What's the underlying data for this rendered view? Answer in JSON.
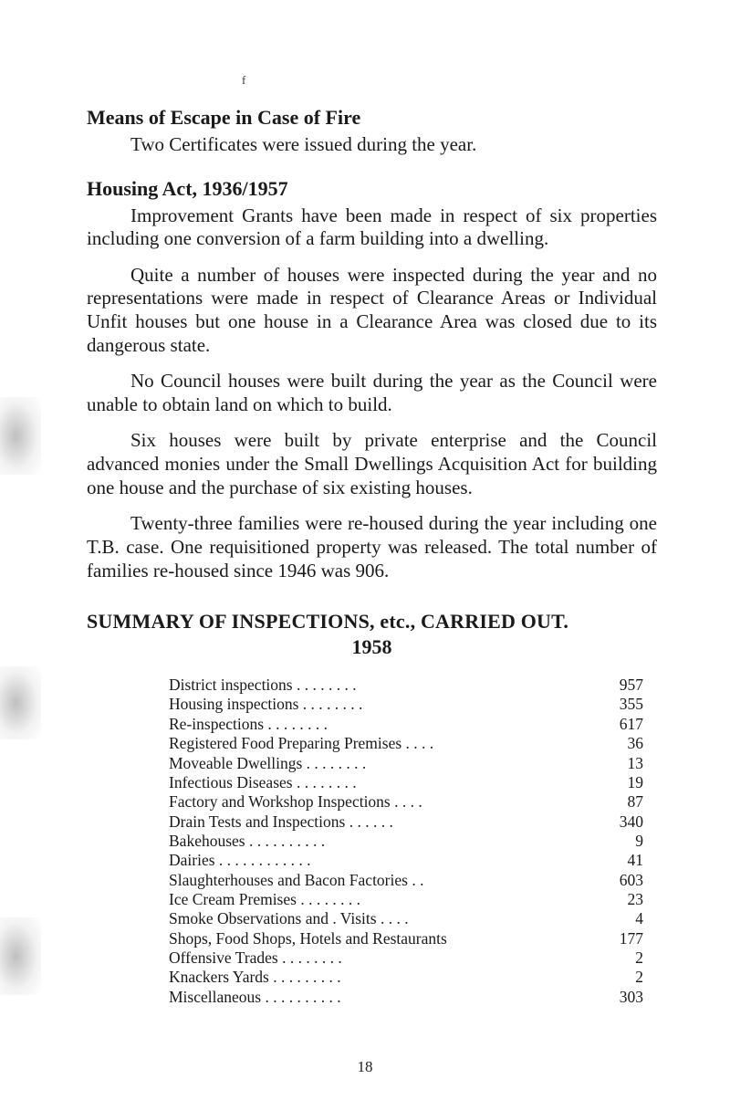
{
  "top_mark": "f",
  "sections": {
    "escape": {
      "heading": "Means of Escape in Case of Fire",
      "p1": "Two Certificates were issued during the year."
    },
    "housing": {
      "heading": "Housing Act, 1936/1957",
      "p1": "Improvement Grants have been made in respect of six properties including one conversion of a farm building into a dwelling.",
      "p2": "Quite a number of houses were inspected during the year and no representations were made in respect of Clearance Areas or Individual Unfit houses but one house in a Clearance Area was closed due to its dangerous state.",
      "p3": "No Council houses were built during the year as the Council were unable to obtain land on which to build.",
      "p4": "Six houses were built by private enterprise and the Council advanced monies under the Small Dwellings Acquisition Act for building one house and the purchase of six existing houses.",
      "p5": "Twenty-three families were re-housed during the year including one T.B. case.  One requisitioned property was released.  The total number of families re-housed since 1946 was 906."
    }
  },
  "summary": {
    "title": "SUMMARY OF INSPECTIONS, etc., CARRIED OUT.",
    "year": "1958",
    "rows": [
      {
        "label": "District inspections      . .     . .      . .     . .",
        "value": "957"
      },
      {
        "label": "Housing inspections      . .     . .      . .     . .",
        "value": "355"
      },
      {
        "label": "Re-inspections              . .     . .      . .     . .",
        "value": "617"
      },
      {
        "label": "Registered Food Preparing Premises . .     . .",
        "value": "36"
      },
      {
        "label": "Moveable  Dwellings        . .     . .      . .     . .",
        "value": "13"
      },
      {
        "label": "Infectious  Diseases        . .     . .      . .     . .",
        "value": "19"
      },
      {
        "label": "Factory and Workshop Inspections . .     . .",
        "value": "87"
      },
      {
        "label": "Drain Tests and Inspections . .     . .     . .",
        "value": "340"
      },
      {
        "label": "Bakehouses          . .     . .      . .      . .     . .",
        "value": "9"
      },
      {
        "label": "Dairies      . .     . .     . .      . .      . .     . .",
        "value": "41"
      },
      {
        "label": "Slaughterhouses and Bacon Factories     . .",
        "value": "603"
      },
      {
        "label": "Ice Cream Premises   . .     . .      . .     . .",
        "value": "23"
      },
      {
        "label": "Smoke Observations and . Visits        . .     . .",
        "value": "4"
      },
      {
        "label": "Shops, Food Shops, Hotels and Restaurants",
        "value": "177"
      },
      {
        "label": "Offensive  Trades           . .     . .      . .     . .",
        "value": "2"
      },
      {
        "label": "Knackers Yards . .     . .     . .      .      . .",
        "value": "2"
      },
      {
        "label": "Miscellaneous       . .     . .      . .      . .     . .",
        "value": "303"
      }
    ]
  },
  "page_number": "18"
}
